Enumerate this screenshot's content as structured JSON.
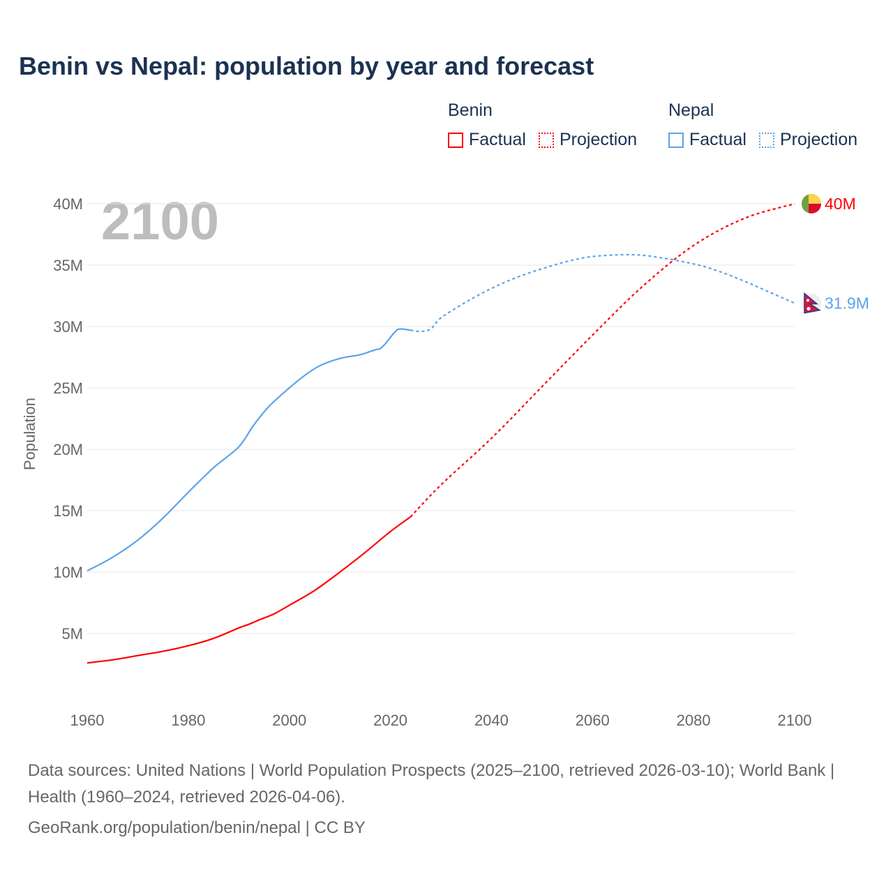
{
  "title": "Benin vs Nepal: population by year and forecast",
  "legend": {
    "groups": [
      {
        "name": "Benin",
        "color": "#ff0000",
        "factual": "Factual",
        "projection": "Projection"
      },
      {
        "name": "Nepal",
        "color": "#5ba4e8",
        "factual": "Factual",
        "projection": "Projection"
      }
    ]
  },
  "footer": {
    "sources": "Data sources: United Nations | World Population Prospects (2025–2100, retrieved 2026-03-10); World Bank | Health (1960–2024, retrieved 2026-04-06).",
    "credit": "GeoRank.org/population/benin/nepal | CC BY"
  },
  "chart_data": {
    "type": "line",
    "title": "Benin vs Nepal: population by year and forecast",
    "xlabel": "",
    "ylabel": "Population",
    "year_watermark": "2100",
    "xlim": [
      1960,
      2100
    ],
    "ylim": [
      0,
      40
    ],
    "x_ticks": [
      "1960",
      "1980",
      "2000",
      "2020",
      "2040",
      "2060",
      "2080",
      "2100"
    ],
    "y_ticks": [
      {
        "v": 5,
        "label": "5M"
      },
      {
        "v": 10,
        "label": "10M"
      },
      {
        "v": 15,
        "label": "15M"
      },
      {
        "v": 20,
        "label": "20M"
      },
      {
        "v": 25,
        "label": "25M"
      },
      {
        "v": 30,
        "label": "30M"
      },
      {
        "v": 35,
        "label": "35M"
      },
      {
        "v": 40,
        "label": "40M"
      }
    ],
    "grid": true,
    "series": [
      {
        "name": "Benin",
        "color": "#ff0000",
        "end_label": "40M",
        "factual": [
          [
            1960,
            2.6
          ],
          [
            1965,
            2.85
          ],
          [
            1970,
            3.2
          ],
          [
            1975,
            3.55
          ],
          [
            1980,
            4.0
          ],
          [
            1985,
            4.6
          ],
          [
            1990,
            5.45
          ],
          [
            1992,
            5.75
          ],
          [
            1994,
            6.1
          ],
          [
            1997,
            6.6
          ],
          [
            2000,
            7.3
          ],
          [
            2005,
            8.5
          ],
          [
            2010,
            10.0
          ],
          [
            2015,
            11.6
          ],
          [
            2020,
            13.3
          ],
          [
            2024,
            14.5
          ]
        ],
        "projection": [
          [
            2024,
            14.5
          ],
          [
            2030,
            17.1
          ],
          [
            2040,
            20.9
          ],
          [
            2050,
            25.1
          ],
          [
            2060,
            29.3
          ],
          [
            2070,
            33.3
          ],
          [
            2080,
            36.6
          ],
          [
            2090,
            38.8
          ],
          [
            2100,
            40.0
          ]
        ]
      },
      {
        "name": "Nepal",
        "color": "#5ba4e8",
        "end_label": "31.9M",
        "factual": [
          [
            1960,
            10.1
          ],
          [
            1965,
            11.2
          ],
          [
            1970,
            12.6
          ],
          [
            1975,
            14.4
          ],
          [
            1980,
            16.5
          ],
          [
            1985,
            18.5
          ],
          [
            1990,
            20.2
          ],
          [
            1993,
            22.0
          ],
          [
            1996,
            23.5
          ],
          [
            2000,
            25.0
          ],
          [
            2003,
            26.0
          ],
          [
            2006,
            26.8
          ],
          [
            2010,
            27.4
          ],
          [
            2014,
            27.7
          ],
          [
            2017,
            28.1
          ],
          [
            2018,
            28.2
          ],
          [
            2019,
            28.6
          ],
          [
            2021,
            29.6
          ],
          [
            2022,
            29.8
          ],
          [
            2024,
            29.7
          ]
        ],
        "projection": [
          [
            2024,
            29.7
          ],
          [
            2026,
            29.6
          ],
          [
            2028,
            29.8
          ],
          [
            2030,
            30.7
          ],
          [
            2035,
            32.0
          ],
          [
            2040,
            33.1
          ],
          [
            2045,
            34.0
          ],
          [
            2050,
            34.7
          ],
          [
            2055,
            35.3
          ],
          [
            2060,
            35.7
          ],
          [
            2067,
            35.85
          ],
          [
            2072,
            35.7
          ],
          [
            2080,
            35.1
          ],
          [
            2085,
            34.5
          ],
          [
            2090,
            33.7
          ],
          [
            2095,
            32.8
          ],
          [
            2100,
            31.9
          ]
        ]
      }
    ]
  }
}
